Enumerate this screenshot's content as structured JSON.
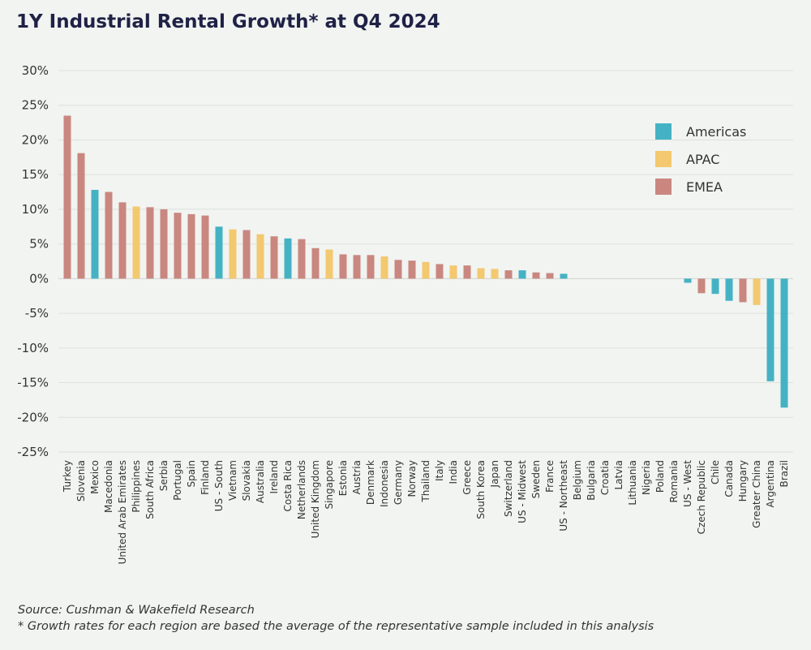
{
  "chart_data": {
    "type": "bar",
    "title": "1Y Industrial Rental Growth* at Q4 2024",
    "xlabel": "",
    "ylabel": "",
    "ylim": [
      -25,
      30
    ],
    "yticks": [
      30,
      25,
      20,
      15,
      10,
      5,
      0,
      -5,
      -10,
      -15,
      -20,
      -25
    ],
    "ytick_labels": [
      "30%",
      "25%",
      "20%",
      "15%",
      "10%",
      "5%",
      "0%",
      "-5%",
      "-10%",
      "-15%",
      "-20%",
      "-25%"
    ],
    "grid": true,
    "legend_position": "right",
    "series": [
      {
        "name": "Americas",
        "color": "#45b2c4"
      },
      {
        "name": "APAC",
        "color": "#f3c86f"
      },
      {
        "name": "EMEA",
        "color": "#c98780"
      }
    ],
    "categories": [
      "Turkey",
      "Slovenia",
      "Mexico",
      "Macedonia",
      "United Arab Emirates",
      "Philippines",
      "South Africa",
      "Serbia",
      "Portugal",
      "Spain",
      "Finland",
      "US - South",
      "Vietnam",
      "Slovakia",
      "Australia",
      "Ireland",
      "Costa Rica",
      "Netherlands",
      "United Kingdom",
      "Singapore",
      "Estonia",
      "Austria",
      "Denmark",
      "Indonesia",
      "Germany",
      "Norway",
      "Thailand",
      "Italy",
      "India",
      "Greece",
      "South Korea",
      "Japan",
      "Switzerland",
      "US - Midwest",
      "Sweden",
      "France",
      "US - Northeast",
      "Belgium",
      "Bulgaria",
      "Croatia",
      "Latvia",
      "Lithuania",
      "Nigeria",
      "Poland",
      "Romania",
      "US - West",
      "Czech Republic",
      "Chile",
      "Canada",
      "Hungary",
      "Greater China",
      "Argentina",
      "Brazil"
    ],
    "regions": [
      "EMEA",
      "EMEA",
      "Americas",
      "EMEA",
      "EMEA",
      "APAC",
      "EMEA",
      "EMEA",
      "EMEA",
      "EMEA",
      "EMEA",
      "Americas",
      "APAC",
      "EMEA",
      "APAC",
      "EMEA",
      "Americas",
      "EMEA",
      "EMEA",
      "APAC",
      "EMEA",
      "EMEA",
      "EMEA",
      "APAC",
      "EMEA",
      "EMEA",
      "APAC",
      "EMEA",
      "APAC",
      "EMEA",
      "APAC",
      "APAC",
      "EMEA",
      "Americas",
      "EMEA",
      "EMEA",
      "Americas",
      "EMEA",
      "EMEA",
      "EMEA",
      "EMEA",
      "EMEA",
      "EMEA",
      "EMEA",
      "EMEA",
      "Americas",
      "EMEA",
      "Americas",
      "Americas",
      "EMEA",
      "APAC",
      "Americas",
      "Americas"
    ],
    "values": [
      23.5,
      18.1,
      12.8,
      12.5,
      11.0,
      10.4,
      10.3,
      10.0,
      9.5,
      9.3,
      9.1,
      7.5,
      7.1,
      7.0,
      6.4,
      6.1,
      5.8,
      5.7,
      4.4,
      4.2,
      3.5,
      3.4,
      3.4,
      3.2,
      2.7,
      2.6,
      2.4,
      2.1,
      1.9,
      1.9,
      1.5,
      1.4,
      1.2,
      1.2,
      0.9,
      0.8,
      0.7,
      0,
      0,
      0,
      0,
      0,
      0,
      0,
      0,
      -0.6,
      -2.1,
      -2.2,
      -3.2,
      -3.4,
      -3.8,
      -14.8,
      -18.6
    ]
  },
  "footer": {
    "source": "Source: Cushman & Wakefield Research",
    "note": "* Growth rates for each region are based the average of the representative sample included in this analysis"
  }
}
